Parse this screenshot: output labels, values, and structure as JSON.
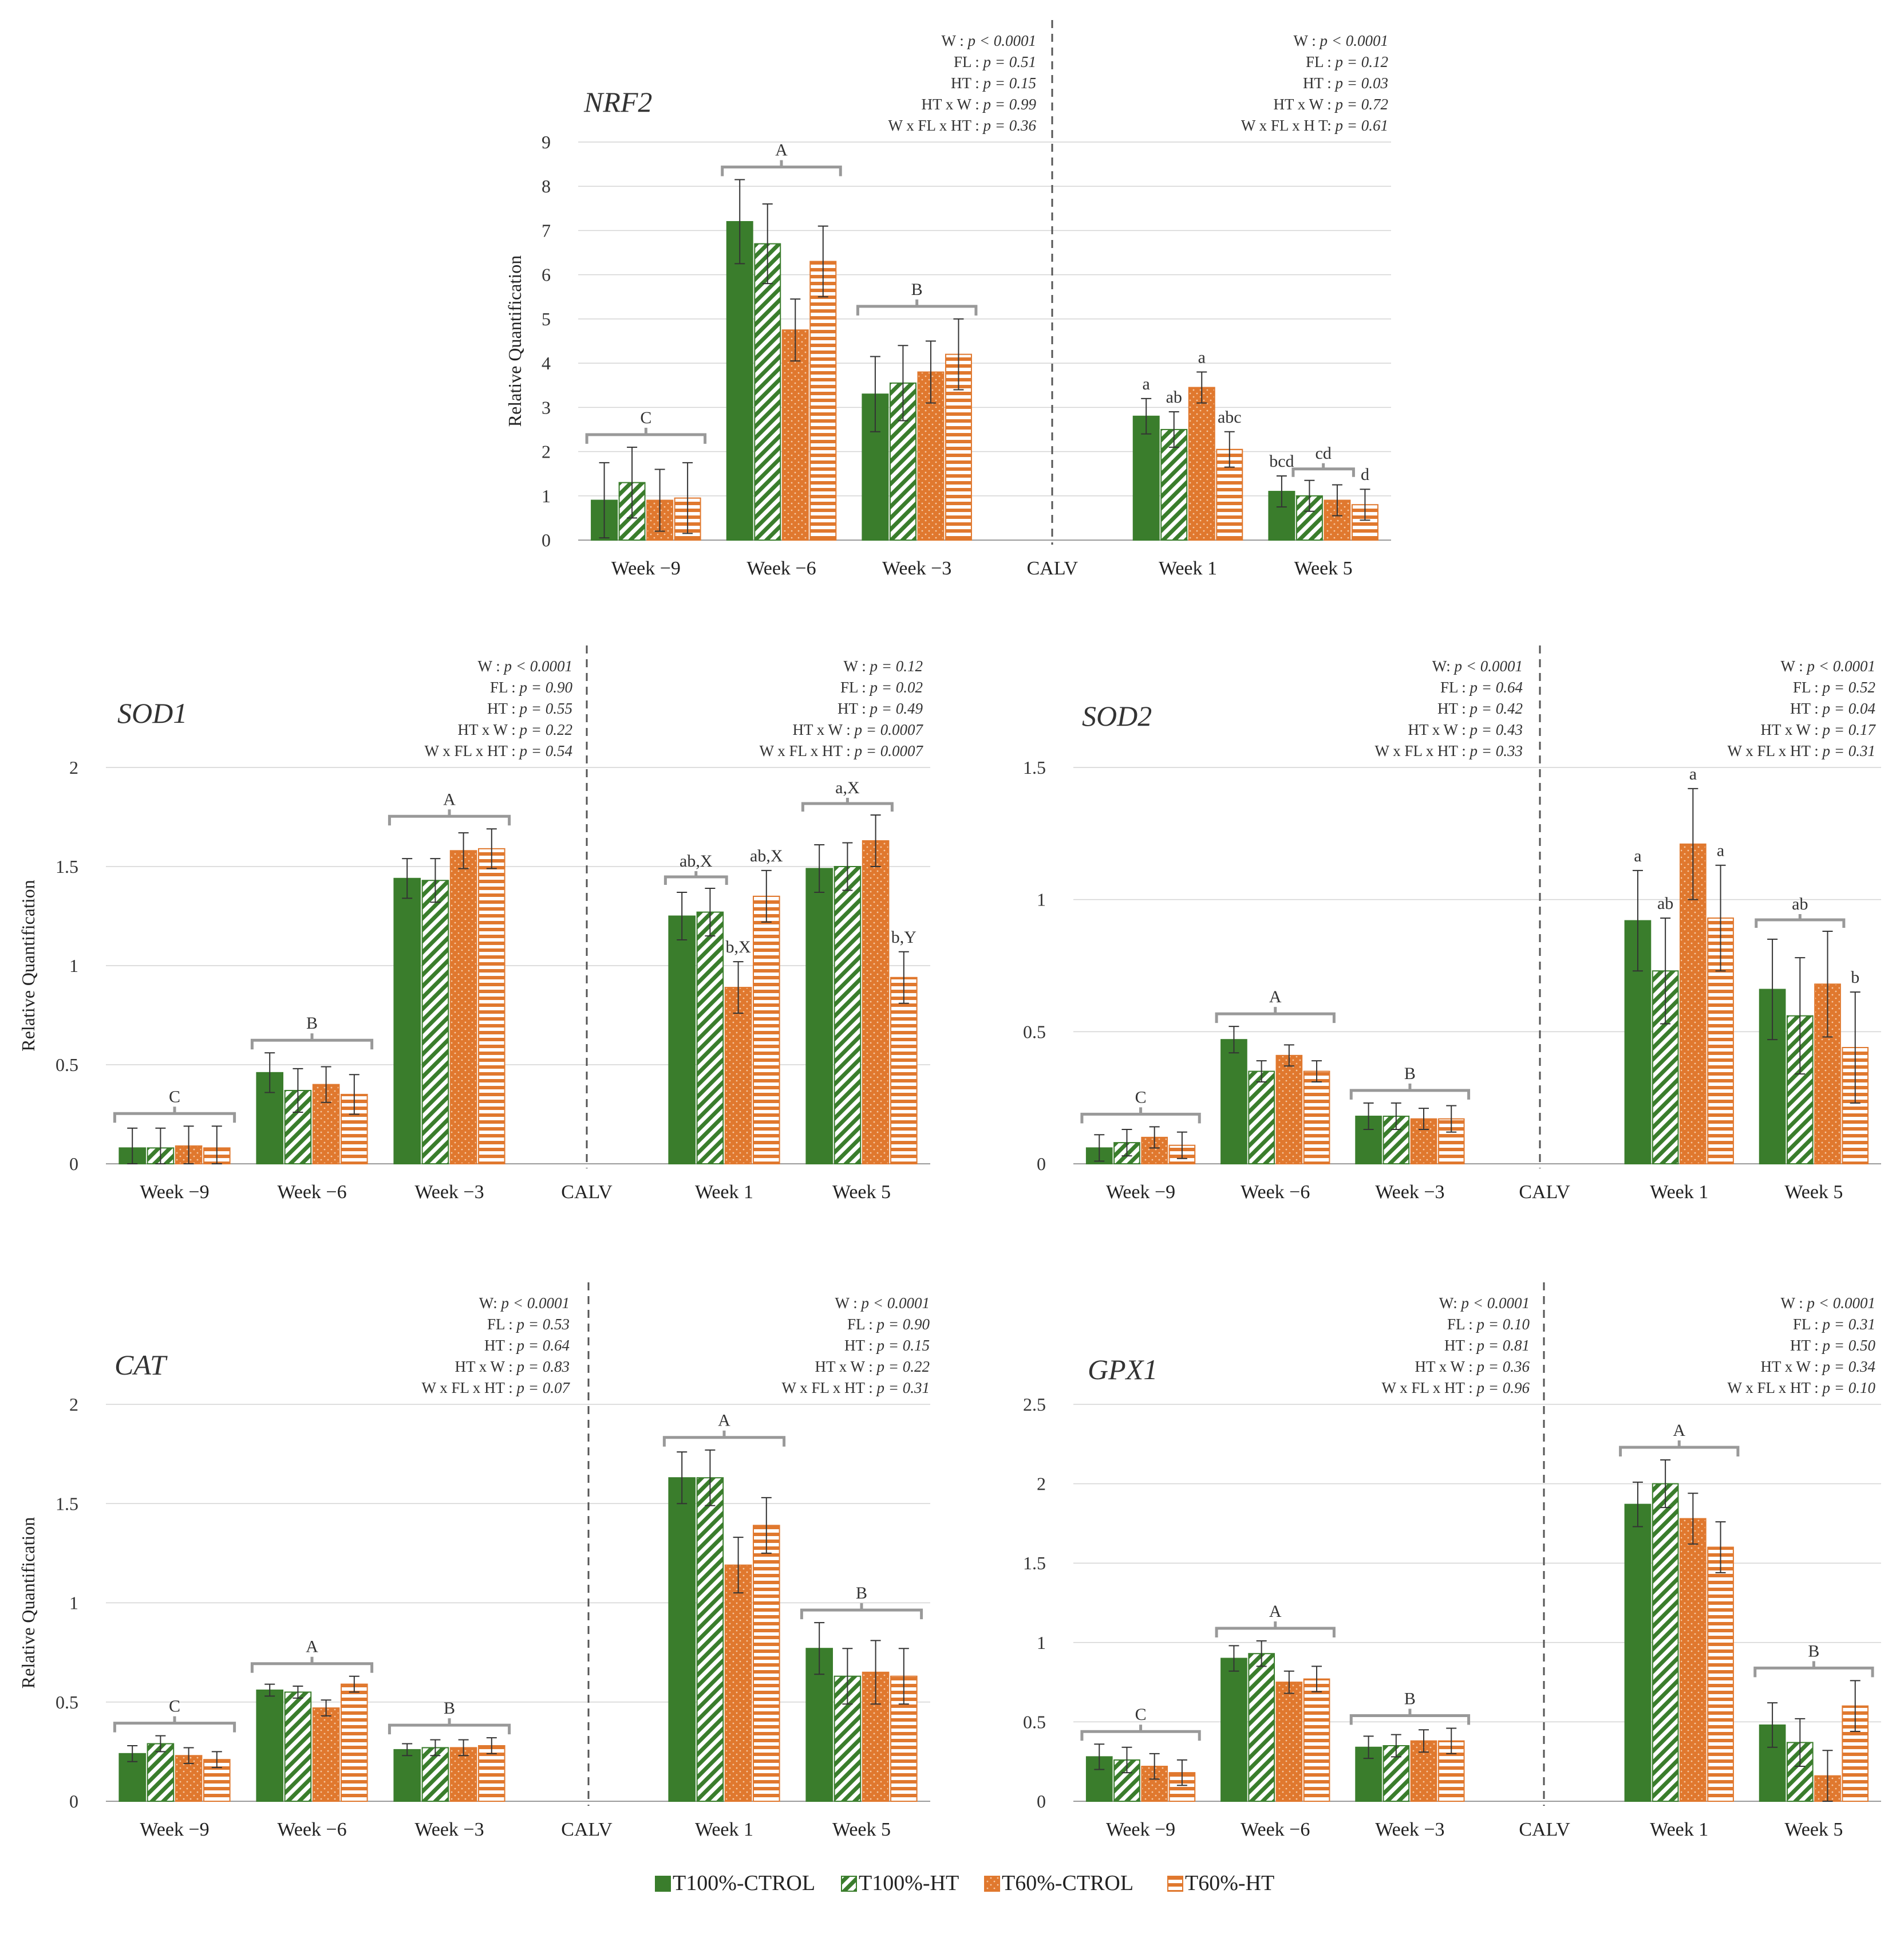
{
  "legend": [
    {
      "label": "T100%-CTROL",
      "color": "#3a7d2c",
      "pattern": "solid"
    },
    {
      "label": "T100%-HT",
      "color": "#3a7d2c",
      "pattern": "diagonal"
    },
    {
      "label": "T60%-CTROL",
      "color": "#e0782e",
      "pattern": "dots"
    },
    {
      "label": "T60%-HT",
      "color": "#e0782e",
      "pattern": "horizontal"
    }
  ],
  "chart_data": [
    {
      "type": "bar",
      "title": "NRF2",
      "ylabel": "Relative Quantification",
      "ylim": [
        0,
        9
      ],
      "yticks": [
        "0",
        "1",
        "2",
        "3",
        "4",
        "5",
        "6",
        "7",
        "8",
        "9"
      ],
      "categories": [
        "Week −9",
        "Week −6",
        "Week −3",
        "CALV",
        "Week 1",
        "Week 5"
      ],
      "series_values": [
        [
          0.9,
          7.2,
          3.3,
          null,
          2.8,
          1.1
        ],
        [
          1.3,
          6.7,
          3.55,
          null,
          2.5,
          1.0
        ],
        [
          0.9,
          4.75,
          3.8,
          null,
          3.45,
          0.9
        ],
        [
          0.95,
          6.3,
          4.2,
          null,
          2.05,
          0.8
        ]
      ],
      "errors": [
        [
          0.85,
          0.95,
          0.85,
          null,
          0.4,
          0.35
        ],
        [
          0.8,
          0.9,
          0.85,
          null,
          0.4,
          0.35
        ],
        [
          0.7,
          0.7,
          0.7,
          null,
          0.35,
          0.35
        ],
        [
          0.8,
          0.8,
          0.8,
          null,
          0.4,
          0.35
        ]
      ],
      "group_labels": [
        {
          "category": 0,
          "text": "C"
        },
        {
          "category": 1,
          "text": "A"
        },
        {
          "category": 2,
          "text": "B"
        }
      ],
      "bar_labels": [
        {
          "category": 4,
          "bar": 0,
          "text": "a"
        },
        {
          "category": 4,
          "bar": 1,
          "text": "ab"
        },
        {
          "category": 4,
          "bar": 2,
          "text": "a"
        },
        {
          "category": 4,
          "bar": 3,
          "text": "abc"
        },
        {
          "category": 5,
          "bar": 0,
          "text": "bcd"
        },
        {
          "category": 5,
          "bar": 3,
          "text": "d"
        }
      ],
      "partial_brackets": [
        {
          "category": 5,
          "from_bar": 1,
          "to_bar": 2,
          "text": "cd"
        }
      ],
      "stats_left": [
        "W : p < 0.0001",
        "FL : p = 0.51",
        "HT : p = 0.15",
        "HT x W : p = 0.99",
        "W x FL x HT : p = 0.36"
      ],
      "stats_right": [
        "W : p < 0.0001",
        "FL : p = 0.12",
        "HT : p = 0.03",
        "HT x W : p = 0.72",
        "W x FL x H T: p = 0.61"
      ]
    },
    {
      "type": "bar",
      "title": "SOD1",
      "ylabel": "Relative Quantification",
      "ylim": [
        0,
        2
      ],
      "yticks": [
        "0",
        "0.5",
        "1",
        "1.5",
        "2"
      ],
      "categories": [
        "Week −9",
        "Week −6",
        "Week −3",
        "CALV",
        "Week 1",
        "Week 5"
      ],
      "series_values": [
        [
          0.08,
          0.46,
          1.44,
          null,
          1.25,
          1.49
        ],
        [
          0.08,
          0.37,
          1.43,
          null,
          1.27,
          1.5
        ],
        [
          0.09,
          0.4,
          1.58,
          null,
          0.89,
          1.63
        ],
        [
          0.08,
          0.35,
          1.59,
          null,
          1.35,
          0.94
        ]
      ],
      "errors": [
        [
          0.1,
          0.1,
          0.1,
          null,
          0.12,
          0.12
        ],
        [
          0.1,
          0.11,
          0.11,
          null,
          0.12,
          0.12
        ],
        [
          0.1,
          0.09,
          0.09,
          null,
          0.13,
          0.13
        ],
        [
          0.11,
          0.1,
          0.1,
          null,
          0.13,
          0.13
        ]
      ],
      "group_labels": [
        {
          "category": 0,
          "text": "C"
        },
        {
          "category": 1,
          "text": "B"
        },
        {
          "category": 2,
          "text": "A"
        }
      ],
      "bar_labels": [
        {
          "category": 4,
          "bar": 2,
          "text": "b,X"
        },
        {
          "category": 4,
          "bar": 3,
          "text": "ab,X"
        },
        {
          "category": 5,
          "bar": 3,
          "text": "b,Y"
        }
      ],
      "partial_brackets": [
        {
          "category": 4,
          "from_bar": 0,
          "to_bar": 1,
          "text": "ab,X"
        },
        {
          "category": 5,
          "from_bar": 0,
          "to_bar": 2,
          "text": "a,X"
        }
      ],
      "stats_left": [
        "W : p < 0.0001",
        "FL : p = 0.90",
        "HT : p = 0.55",
        "HT x W : p = 0.22",
        "W x FL x HT : p = 0.54"
      ],
      "stats_right": [
        "W : p = 0.12",
        "FL : p = 0.02",
        "HT : p = 0.49",
        "HT x W : p = 0.0007",
        "W x FL x HT : p = 0.0007"
      ]
    },
    {
      "type": "bar",
      "title": "SOD2",
      "ylabel": "",
      "ylim": [
        0,
        1.5
      ],
      "yticks": [
        "0",
        "0.5",
        "1",
        "1.5"
      ],
      "categories": [
        "Week −9",
        "Week −6",
        "Week −3",
        "CALV",
        "Week 1",
        "Week 5"
      ],
      "series_values": [
        [
          0.06,
          0.47,
          0.18,
          null,
          0.92,
          0.66
        ],
        [
          0.08,
          0.35,
          0.18,
          null,
          0.73,
          0.56
        ],
        [
          0.1,
          0.41,
          0.17,
          null,
          1.21,
          0.68
        ],
        [
          0.07,
          0.35,
          0.17,
          null,
          0.93,
          0.44
        ]
      ],
      "errors": [
        [
          0.05,
          0.05,
          0.05,
          null,
          0.19,
          0.19
        ],
        [
          0.05,
          0.04,
          0.05,
          null,
          0.2,
          0.22
        ],
        [
          0.04,
          0.04,
          0.04,
          null,
          0.21,
          0.2
        ],
        [
          0.05,
          0.04,
          0.05,
          null,
          0.2,
          0.21
        ]
      ],
      "group_labels": [
        {
          "category": 0,
          "text": "C"
        },
        {
          "category": 1,
          "text": "A"
        },
        {
          "category": 2,
          "text": "B"
        }
      ],
      "bar_labels": [
        {
          "category": 4,
          "bar": 0,
          "text": "a"
        },
        {
          "category": 4,
          "bar": 1,
          "text": "ab"
        },
        {
          "category": 4,
          "bar": 2,
          "text": "a"
        },
        {
          "category": 4,
          "bar": 3,
          "text": "a"
        },
        {
          "category": 5,
          "bar": 3,
          "text": "b"
        }
      ],
      "partial_brackets": [
        {
          "category": 5,
          "from_bar": 0,
          "to_bar": 2,
          "text": "ab"
        }
      ],
      "stats_left": [
        "W: p < 0.0001",
        "FL : p = 0.64",
        "HT : p = 0.42",
        "HT x W : p = 0.43",
        "W x FL x HT : p = 0.33"
      ],
      "stats_right": [
        "W : p < 0.0001",
        "FL : p = 0.52",
        "HT : p = 0.04",
        "HT x W : p = 0.17",
        "W x FL x HT : p = 0.31"
      ]
    },
    {
      "type": "bar",
      "title": "CAT",
      "ylabel": "Relative Quantification",
      "ylim": [
        0,
        2
      ],
      "yticks": [
        "0",
        "0.5",
        "1",
        "1.5",
        "2"
      ],
      "categories": [
        "Week −9",
        "Week −6",
        "Week −3",
        "CALV",
        "Week 1",
        "Week 5"
      ],
      "series_values": [
        [
          0.24,
          0.56,
          0.26,
          null,
          1.63,
          0.77
        ],
        [
          0.29,
          0.55,
          0.27,
          null,
          1.63,
          0.63
        ],
        [
          0.23,
          0.47,
          0.27,
          null,
          1.19,
          0.65
        ],
        [
          0.21,
          0.59,
          0.28,
          null,
          1.39,
          0.63
        ]
      ],
      "errors": [
        [
          0.04,
          0.03,
          0.03,
          null,
          0.13,
          0.13
        ],
        [
          0.04,
          0.03,
          0.04,
          null,
          0.14,
          0.14
        ],
        [
          0.04,
          0.04,
          0.04,
          null,
          0.14,
          0.16
        ],
        [
          0.04,
          0.04,
          0.04,
          null,
          0.14,
          0.14
        ]
      ],
      "group_labels": [
        {
          "category": 0,
          "text": "C"
        },
        {
          "category": 1,
          "text": "A"
        },
        {
          "category": 2,
          "text": "B"
        },
        {
          "category": 4,
          "text": "A"
        },
        {
          "category": 5,
          "text": "B"
        }
      ],
      "bar_labels": [],
      "partial_brackets": [],
      "stats_left": [
        "W: p < 0.0001",
        "FL : p = 0.53",
        "HT : p = 0.64",
        "HT x W : p = 0.83",
        "W x FL x HT : p = 0.07"
      ],
      "stats_right": [
        "W : p < 0.0001",
        "FL : p = 0.90",
        "HT : p = 0.15",
        "HT x W : p = 0.22",
        "W x FL x HT : p = 0.31"
      ]
    },
    {
      "type": "bar",
      "title": "GPX1",
      "ylabel": "",
      "ylim": [
        0,
        2.5
      ],
      "yticks": [
        "0",
        "0.5",
        "1",
        "1.5",
        "2",
        "2.5"
      ],
      "categories": [
        "Week −9",
        "Week −6",
        "Week −3",
        "CALV",
        "Week 1",
        "Week 5"
      ],
      "series_values": [
        [
          0.28,
          0.9,
          0.34,
          null,
          1.87,
          0.48
        ],
        [
          0.26,
          0.93,
          0.35,
          null,
          2.0,
          0.37
        ],
        [
          0.22,
          0.75,
          0.38,
          null,
          1.78,
          0.16
        ],
        [
          0.18,
          0.77,
          0.38,
          null,
          1.6,
          0.6
        ]
      ],
      "errors": [
        [
          0.08,
          0.08,
          0.07,
          null,
          0.14,
          0.14
        ],
        [
          0.08,
          0.08,
          0.07,
          null,
          0.15,
          0.15
        ],
        [
          0.08,
          0.07,
          0.07,
          null,
          0.16,
          0.16
        ],
        [
          0.08,
          0.08,
          0.08,
          null,
          0.16,
          0.16
        ]
      ],
      "group_labels": [
        {
          "category": 0,
          "text": "C"
        },
        {
          "category": 1,
          "text": "A"
        },
        {
          "category": 2,
          "text": "B"
        },
        {
          "category": 4,
          "text": "A"
        },
        {
          "category": 5,
          "text": "B"
        }
      ],
      "bar_labels": [],
      "partial_brackets": [],
      "stats_left": [
        "W: p < 0.0001",
        "FL : p = 0.10",
        "HT : p = 0.81",
        "HT x W : p = 0.36",
        "W x FL x HT : p = 0.96"
      ],
      "stats_right": [
        "W : p < 0.0001",
        "FL : p = 0.31",
        "HT : p = 0.50",
        "HT x W : p = 0.34",
        "W x FL x HT : p = 0.10"
      ]
    }
  ]
}
